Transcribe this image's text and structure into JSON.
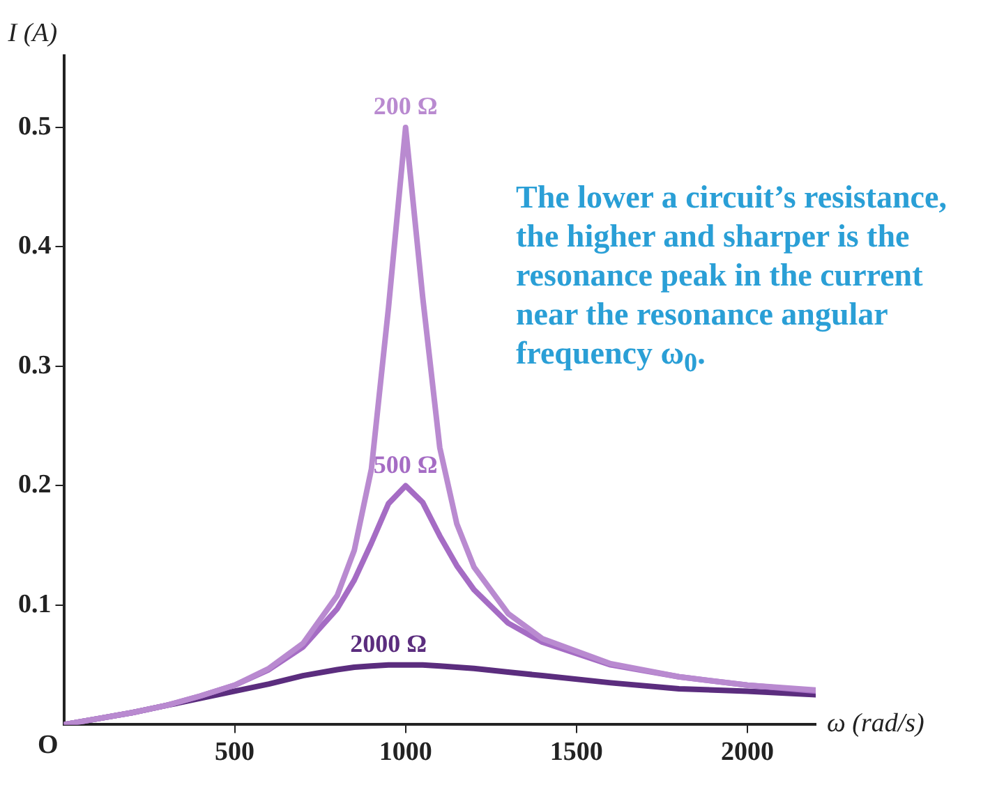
{
  "chart_data": {
    "type": "line",
    "xlabel": "ω (rad/s)",
    "ylabel": "I (A)",
    "x": [
      0,
      100,
      200,
      300,
      400,
      500,
      600,
      700,
      800,
      850,
      900,
      950,
      1000,
      1050,
      1100,
      1150,
      1200,
      1300,
      1400,
      1600,
      1800,
      2000,
      2200
    ],
    "series": [
      {
        "name": "200 Ω",
        "color": "#b98ad0",
        "values": [
          0,
          0.005,
          0.01,
          0.016,
          0.024,
          0.033,
          0.047,
          0.068,
          0.108,
          0.146,
          0.214,
          0.349,
          0.5,
          0.358,
          0.232,
          0.168,
          0.132,
          0.093,
          0.072,
          0.051,
          0.04,
          0.033,
          0.029
        ]
      },
      {
        "name": "500 Ω",
        "color": "#a56cc4",
        "values": [
          0,
          0.005,
          0.01,
          0.016,
          0.024,
          0.033,
          0.046,
          0.065,
          0.097,
          0.121,
          0.152,
          0.185,
          0.2,
          0.186,
          0.158,
          0.133,
          0.113,
          0.085,
          0.069,
          0.05,
          0.04,
          0.033,
          0.028
        ]
      },
      {
        "name": "2000 Ω",
        "color": "#5b2d7e",
        "values": [
          0,
          0.005,
          0.01,
          0.016,
          0.022,
          0.028,
          0.034,
          0.041,
          0.046,
          0.048,
          0.049,
          0.05,
          0.05,
          0.05,
          0.049,
          0.048,
          0.047,
          0.044,
          0.041,
          0.035,
          0.03,
          0.028,
          0.025
        ]
      }
    ],
    "xlim": [
      0,
      2200
    ],
    "xticks": [
      500,
      1000,
      1500,
      2000
    ],
    "ylim": [
      0,
      0.56
    ],
    "yticks": [
      0.1,
      0.2,
      0.3,
      0.4,
      0.5
    ],
    "grid": false,
    "legend": false,
    "marker": "none",
    "line_style": "solid",
    "annotations": [
      "O",
      "The lower a circuit’s resistance, the higher and sharper is the resonance peak in the current near the resonance angular frequency ω$_{0}$."
    ]
  }
}
